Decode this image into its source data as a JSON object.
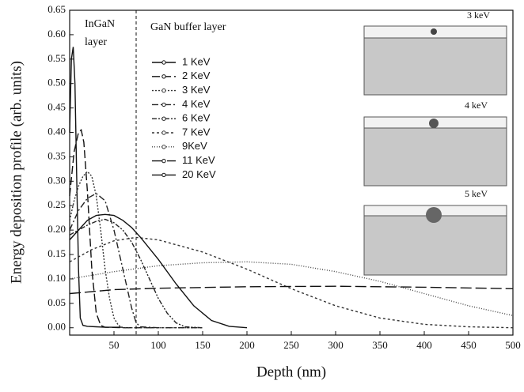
{
  "chart_data": {
    "type": "line",
    "xlabel": "Depth (nm)",
    "ylabel": "Energy deposition profile (arb. units)",
    "xlim": [
      0,
      500
    ],
    "ylim": [
      -0.015,
      0.65
    ],
    "xticks": [
      50,
      100,
      150,
      200,
      250,
      300,
      350,
      400,
      450,
      500
    ],
    "yticks": [
      {
        "value": 0,
        "label": "0.00"
      },
      0.05,
      {
        "value": 0.1,
        "label": "0.10"
      },
      0.15,
      {
        "value": 0.2,
        "label": "0.20"
      },
      0.25,
      {
        "value": 0.3,
        "label": "0.30"
      },
      0.35,
      {
        "value": 0.4,
        "label": "0.40"
      },
      0.45,
      {
        "value": 0.5,
        "label": "0.50"
      },
      0.55,
      {
        "value": 0.6,
        "label": "0.60"
      },
      0.65
    ],
    "annotations": {
      "ingan": [
        "InGaN",
        "layer"
      ],
      "gan": "GaN buffer layer",
      "interface_x": 75
    },
    "insets": [
      "3 keV",
      "4 keV",
      "5 keV"
    ],
    "series": [
      {
        "name": "1 KeV",
        "color": "#111",
        "dash": "",
        "x": [
          0,
          2,
          4,
          6,
          8,
          10,
          12,
          15,
          20,
          30,
          40,
          60
        ],
        "values": [
          0.4,
          0.55,
          0.575,
          0.5,
          0.3,
          0.12,
          0.02,
          0.005,
          0.003,
          0.002,
          0.001,
          0.001
        ]
      },
      {
        "name": "2 KeV",
        "color": "#111",
        "dash": "10 4",
        "x": [
          0,
          5,
          10,
          13,
          16,
          20,
          25,
          30,
          35,
          40,
          60,
          100
        ],
        "values": [
          0.27,
          0.36,
          0.4,
          0.405,
          0.38,
          0.28,
          0.12,
          0.03,
          0.005,
          0.001,
          0,
          0
        ]
      },
      {
        "name": "3 KeV",
        "color": "#333",
        "dash": "2 2",
        "x": [
          0,
          5,
          10,
          15,
          20,
          25,
          30,
          35,
          40,
          45,
          50,
          55,
          60,
          100,
          150
        ],
        "values": [
          0.22,
          0.26,
          0.29,
          0.31,
          0.32,
          0.31,
          0.27,
          0.2,
          0.12,
          0.06,
          0.02,
          0.005,
          0,
          0,
          0
        ]
      },
      {
        "name": "4 KeV",
        "color": "#222",
        "dash": "8 3 2 3",
        "x": [
          0,
          10,
          20,
          30,
          40,
          50,
          60,
          70,
          75,
          80,
          100,
          150
        ],
        "values": [
          0.2,
          0.24,
          0.265,
          0.275,
          0.26,
          0.2,
          0.12,
          0.04,
          0.01,
          0.002,
          0,
          0
        ]
      },
      {
        "name": "6 KeV",
        "color": "#222",
        "dash": "6 2 2 2 2 2",
        "x": [
          0,
          10,
          20,
          30,
          40,
          50,
          60,
          70,
          80,
          90,
          100,
          110,
          120,
          130,
          150
        ],
        "values": [
          0.19,
          0.2,
          0.21,
          0.218,
          0.222,
          0.215,
          0.2,
          0.175,
          0.14,
          0.1,
          0.06,
          0.03,
          0.01,
          0.002,
          0
        ]
      },
      {
        "name": "7 KeV",
        "color": "#333",
        "dash": "3 3",
        "x": [
          0,
          25,
          50,
          75,
          100,
          150,
          200,
          250,
          300,
          350,
          400,
          450,
          500
        ],
        "values": [
          0.135,
          0.16,
          0.178,
          0.185,
          0.18,
          0.155,
          0.12,
          0.08,
          0.045,
          0.02,
          0.007,
          0.002,
          0
        ]
      },
      {
        "name": "9KeV",
        "color": "#444",
        "dash": "1 2",
        "x": [
          0,
          50,
          100,
          150,
          200,
          250,
          300,
          350,
          400,
          450,
          500
        ],
        "values": [
          0.1,
          0.115,
          0.127,
          0.133,
          0.135,
          0.13,
          0.115,
          0.095,
          0.07,
          0.045,
          0.025
        ]
      },
      {
        "name": "11 KeV",
        "color": "#111",
        "dash": "14 5",
        "x": [
          0,
          50,
          100,
          200,
          300,
          400,
          500
        ],
        "values": [
          0.07,
          0.078,
          0.081,
          0.084,
          0.085,
          0.083,
          0.08
        ]
      },
      {
        "name": "20 KeV",
        "color": "#111",
        "dash": "",
        "x": [
          0,
          10,
          20,
          30,
          40,
          50,
          60,
          70,
          80,
          100,
          120,
          140,
          160,
          180,
          200
        ],
        "values": [
          0.18,
          0.2,
          0.22,
          0.23,
          0.232,
          0.23,
          0.22,
          0.205,
          0.185,
          0.14,
          0.09,
          0.045,
          0.015,
          0.003,
          0
        ]
      }
    ]
  }
}
